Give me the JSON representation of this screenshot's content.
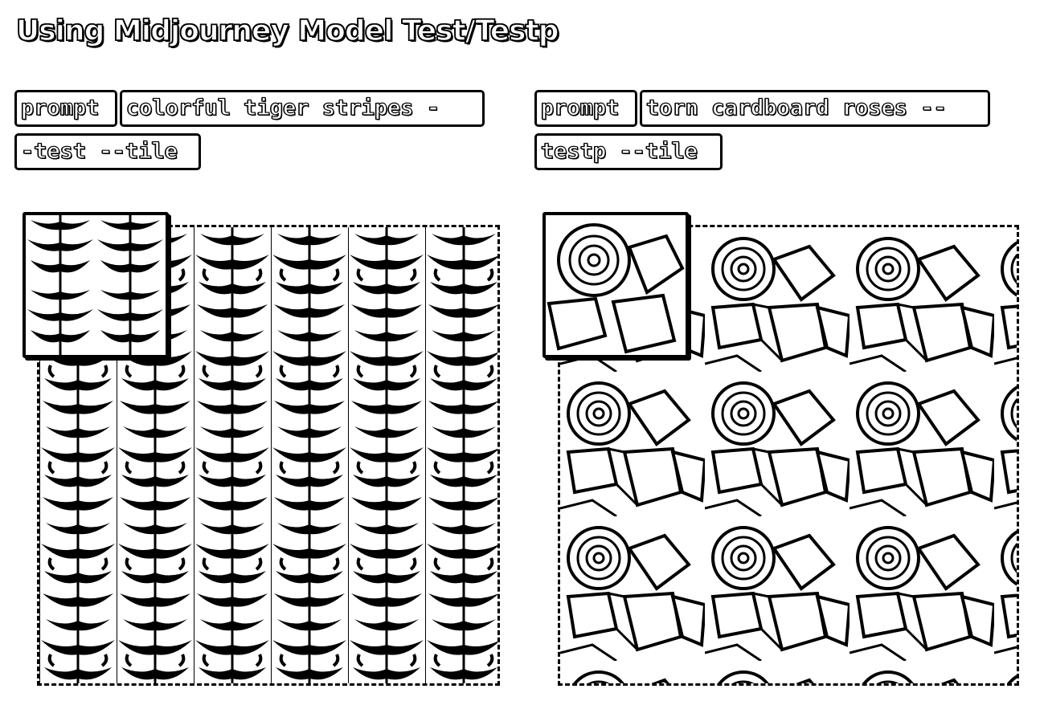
{
  "header": {
    "title": "Using Midjourney Model Test/Testp"
  },
  "panels": [
    {
      "prompt_label": "prompt",
      "prompt_text_line1": "colorful tiger stripes -",
      "prompt_text_line2": "-test --tile",
      "image_subject": "tiger-stripes-pattern"
    },
    {
      "prompt_label": "prompt",
      "prompt_text_line1": "torn cardboard roses --",
      "prompt_text_line2": "testp --tile",
      "image_subject": "cardboard-roses-pattern"
    }
  ]
}
